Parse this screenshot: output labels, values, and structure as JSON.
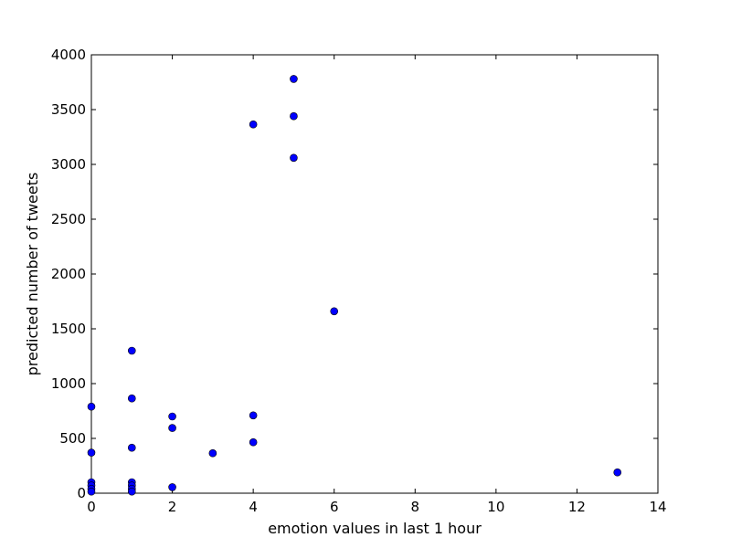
{
  "chart_data": {
    "type": "scatter",
    "title": "",
    "xlabel": "emotion values in last 1 hour",
    "ylabel": "predicted number of tweets",
    "xlim": [
      0,
      14
    ],
    "ylim": [
      0,
      4000
    ],
    "xticks": [
      0,
      2,
      4,
      6,
      8,
      10,
      12,
      14
    ],
    "yticks": [
      0,
      500,
      1000,
      1500,
      2000,
      2500,
      3000,
      3500,
      4000
    ],
    "grid": false,
    "legend": "none",
    "marker_color": "#0000ff",
    "series": [
      {
        "points": [
          [
            0,
            790
          ],
          [
            0,
            370
          ],
          [
            0,
            100
          ],
          [
            0,
            70
          ],
          [
            0,
            40
          ],
          [
            0,
            15
          ],
          [
            1,
            1300
          ],
          [
            1,
            865
          ],
          [
            1,
            415
          ],
          [
            1,
            100
          ],
          [
            1,
            70
          ],
          [
            1,
            40
          ],
          [
            1,
            15
          ],
          [
            2,
            700
          ],
          [
            2,
            595
          ],
          [
            2,
            55
          ],
          [
            3,
            365
          ],
          [
            4,
            3365
          ],
          [
            4,
            710
          ],
          [
            4,
            465
          ],
          [
            5,
            3780
          ],
          [
            5,
            3440
          ],
          [
            5,
            3060
          ],
          [
            6,
            1660
          ],
          [
            13,
            190
          ]
        ]
      }
    ]
  }
}
